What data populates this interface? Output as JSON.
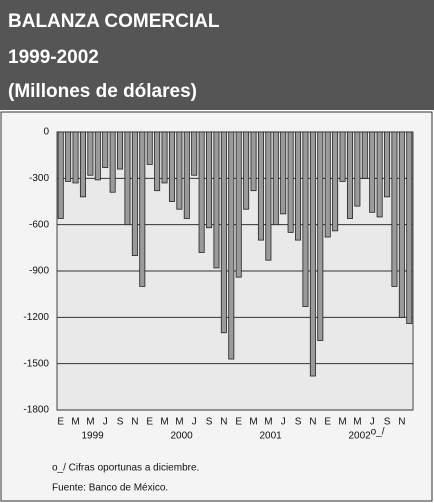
{
  "chart_data": {
    "type": "bar",
    "title": "BALANZA COMERCIAL",
    "subtitle": "1999-2002",
    "units": "(Millones de dólares)",
    "categories": [
      "E",
      null,
      "M",
      null,
      "M",
      null,
      "J",
      null,
      "S",
      null,
      "N",
      null,
      "E",
      null,
      "M",
      null,
      "M",
      null,
      "J",
      null,
      "S",
      null,
      "N",
      null,
      "E",
      null,
      "M",
      null,
      "M",
      null,
      "J",
      null,
      "S",
      null,
      "N",
      null,
      "E",
      null,
      "M",
      null,
      "M",
      null,
      "J",
      null,
      "S",
      null,
      "N",
      null
    ],
    "years": [
      "1999",
      "2000",
      "2001",
      "2002"
    ],
    "year_note": "o_/",
    "values": [
      -560,
      -320,
      -330,
      -420,
      -280,
      -310,
      -230,
      -390,
      -240,
      -600,
      -800,
      -1000,
      -210,
      -380,
      -330,
      -450,
      -500,
      -560,
      -280,
      -780,
      -620,
      -880,
      -1300,
      -1470,
      -940,
      -500,
      -380,
      -700,
      -830,
      -600,
      -530,
      -650,
      -700,
      -1130,
      -1580,
      -1350,
      -680,
      -640,
      -320,
      -560,
      -480,
      -300,
      -520,
      -550,
      -420,
      -1000,
      -1200,
      -1240
    ],
    "color": "#9a9a9a",
    "ylim": [
      -1800,
      0
    ],
    "yticks": [
      0,
      -300,
      -600,
      -900,
      -1200,
      -1500,
      -1800
    ],
    "grid": true,
    "notes": [
      "o_/ Cifras oportunas a diciembre.",
      "Fuente: Banco de México."
    ]
  }
}
